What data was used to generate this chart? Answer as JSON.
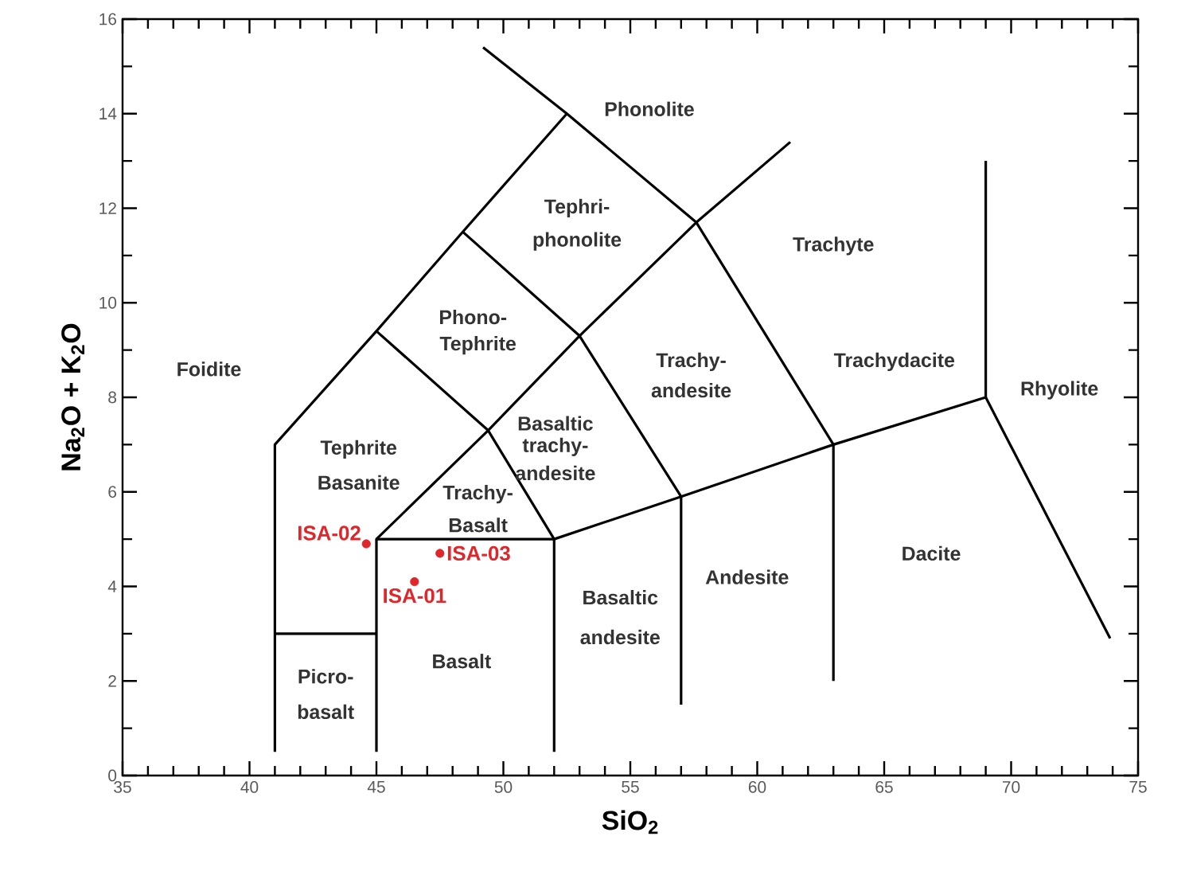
{
  "chart_data": {
    "type": "scatter",
    "xlabel": "SiO$_{2}$",
    "ylabel": "Na$_{2}$O + K$_{2}$O",
    "xlim": [
      35,
      75
    ],
    "ylim": [
      0,
      16
    ],
    "xticks": [
      35,
      40,
      45,
      50,
      55,
      60,
      65,
      70,
      75
    ],
    "yticks": [
      0,
      2,
      4,
      6,
      8,
      10,
      12,
      14,
      16
    ],
    "grid": false,
    "series": [
      {
        "type": "line",
        "marker": "none",
        "color": "#000000",
        "x": [
          41,
          41,
          45,
          48.4,
          52.5,
          57.6,
          63,
          63
        ],
        "values": [
          0.5,
          7,
          9.4,
          11.5,
          14,
          11.7,
          7,
          2
        ]
      },
      {
        "type": "line",
        "marker": "none",
        "color": "#000000",
        "x": [
          49.2,
          52.5
        ],
        "values": [
          15.4,
          14
        ]
      },
      {
        "type": "line",
        "marker": "none",
        "color": "#000000",
        "x": [
          41,
          45
        ],
        "values": [
          3,
          3
        ]
      },
      {
        "type": "line",
        "marker": "none",
        "color": "#000000",
        "x": [
          45,
          45,
          52,
          52
        ],
        "values": [
          0.5,
          5,
          5,
          0.5
        ]
      },
      {
        "type": "line",
        "marker": "none",
        "color": "#000000",
        "x": [
          45,
          49.4,
          53,
          57.6,
          61.3
        ],
        "values": [
          5,
          7.3,
          9.3,
          11.7,
          13.4
        ]
      },
      {
        "type": "line",
        "marker": "none",
        "color": "#000000",
        "x": [
          45,
          49.4,
          52,
          57,
          63,
          69,
          73.9
        ],
        "values": [
          9.4,
          7.3,
          5,
          5.9,
          7,
          8,
          2.9
        ]
      },
      {
        "type": "line",
        "marker": "none",
        "color": "#000000",
        "x": [
          48.4,
          53,
          57,
          57
        ],
        "values": [
          11.5,
          9.3,
          5.9,
          1.5
        ]
      },
      {
        "type": "line",
        "marker": "none",
        "color": "#000000",
        "x": [
          69,
          69
        ],
        "values": [
          8,
          13
        ]
      },
      {
        "name": "ISA-01",
        "color": "#e0262a",
        "x": [
          46.5
        ],
        "values": [
          4.1
        ]
      },
      {
        "name": "ISA-02",
        "color": "#e0262a",
        "x": [
          44.6
        ],
        "values": [
          4.9
        ]
      },
      {
        "name": "ISA-03",
        "color": "#e0262a",
        "x": [
          47.5
        ],
        "values": [
          4.7
        ]
      }
    ],
    "annotations": [
      "Phonolite",
      "Tephri-",
      "phonolite",
      "Trachyte",
      "Foidite",
      "Phono-",
      "Tephrite",
      "Trachy-",
      "andesite",
      "Trachydacite",
      "Rhyolite",
      "Tephrite",
      "Basanite",
      "Basaltic",
      "trachy-",
      "andesite",
      "Trachy-",
      "Basalt",
      "Andesite",
      "Dacite",
      "Basaltic",
      "andesite",
      "Basalt",
      "Picro-",
      "basalt"
    ]
  }
}
